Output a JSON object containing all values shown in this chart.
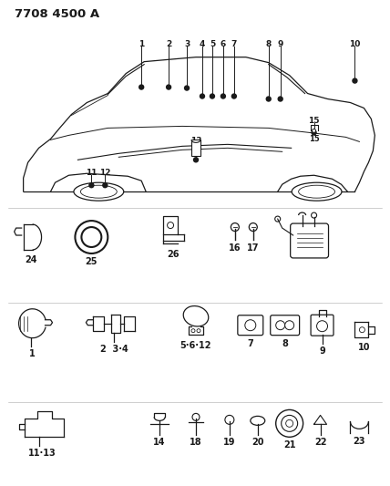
{
  "title": "7708 4500 A",
  "bg_color": "#ffffff",
  "line_color": "#1a1a1a",
  "fig_width": 4.28,
  "fig_height": 5.33,
  "dpi": 100,
  "car_color": "#f0f0f0",
  "top_labels": [
    [
      1,
      155,
      43,
      155,
      95
    ],
    [
      2,
      185,
      43,
      185,
      95
    ],
    [
      3,
      205,
      43,
      205,
      95
    ],
    [
      4,
      222,
      43,
      222,
      105
    ],
    [
      5,
      233,
      43,
      233,
      105
    ],
    [
      6,
      245,
      43,
      245,
      105
    ],
    [
      7,
      257,
      43,
      257,
      105
    ],
    [
      8,
      295,
      43,
      295,
      108
    ],
    [
      9,
      308,
      43,
      308,
      108
    ],
    [
      10,
      390,
      43,
      390,
      88
    ],
    [
      11,
      100,
      185,
      100,
      205
    ],
    [
      12,
      115,
      185,
      115,
      205
    ],
    [
      13,
      215,
      150,
      215,
      175
    ],
    [
      15,
      345,
      128,
      345,
      148
    ]
  ]
}
